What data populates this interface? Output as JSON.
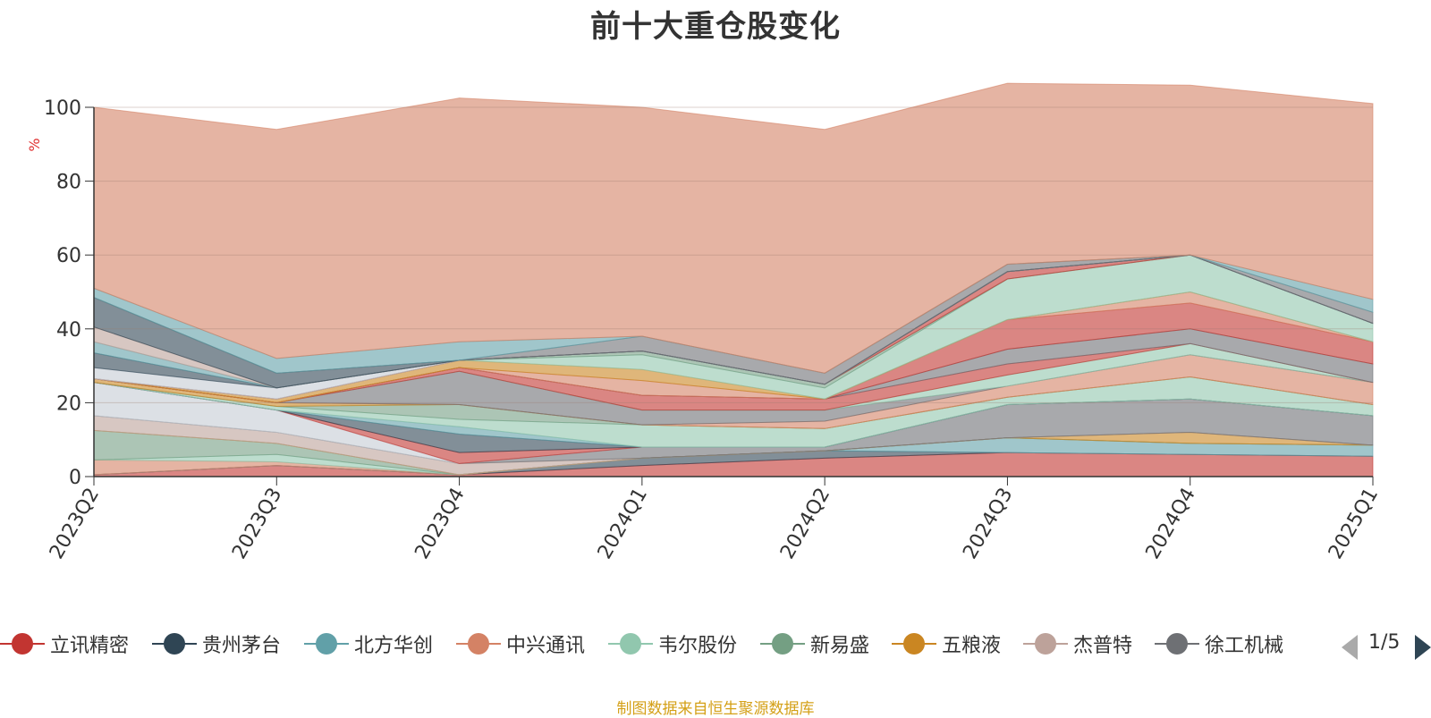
{
  "chart_data": {
    "type": "area",
    "title": "前十大重仓股变化",
    "ylabel": "%",
    "ylim": [
      0,
      100
    ],
    "yticks": [
      0,
      20,
      40,
      60,
      80,
      100
    ],
    "categories": [
      "2023Q2",
      "2023Q3",
      "2023Q4",
      "2024Q1",
      "2024Q2",
      "2024Q3",
      "2024Q4",
      "2025Q1"
    ],
    "grid": true,
    "stacked": true,
    "series": [
      {
        "name": "立讯精密",
        "color": "#c23531",
        "values": [
          0.5,
          3,
          0.5,
          3,
          5,
          6.5,
          6,
          5.5
        ]
      },
      {
        "name": "贵州茅台",
        "color": "#2f4554",
        "values": [
          0,
          0,
          0,
          2,
          2,
          0,
          0,
          0
        ]
      },
      {
        "name": "北方华创",
        "color": "#61a0a8",
        "values": [
          0,
          0,
          0,
          0,
          0,
          4,
          3,
          3
        ]
      },
      {
        "name": "中兴通讯",
        "color": "#d48265",
        "values": [
          4,
          1,
          0,
          0,
          0,
          0,
          0,
          0
        ]
      },
      {
        "name": "韦尔股份",
        "color": "#91c7ae",
        "values": [
          0,
          2,
          0,
          0,
          0,
          0,
          0,
          0
        ]
      },
      {
        "name": "新易盛",
        "color": "#749f83",
        "values": [
          8,
          3,
          0,
          0,
          0,
          0,
          0,
          0
        ]
      },
      {
        "name": "五粮液",
        "color": "#ca8622",
        "values": [
          0,
          0,
          0,
          0,
          0,
          0,
          3,
          0
        ]
      },
      {
        "name": "杰普特",
        "color": "#bda29a",
        "values": [
          4,
          3,
          3,
          0,
          0,
          0,
          0,
          0
        ]
      },
      {
        "name": "徐工机械",
        "color": "#6e7074",
        "values": [
          0,
          0,
          0,
          3,
          1,
          9,
          9,
          8
        ]
      },
      {
        "name": "",
        "color": "#c4ccd3",
        "values": [
          9,
          6,
          0,
          0,
          0,
          0,
          0,
          0
        ]
      },
      {
        "name": "",
        "color": "#c23531",
        "values": [
          0,
          0,
          3,
          0,
          0,
          0,
          0,
          0
        ]
      },
      {
        "name": "",
        "color": "#2f4554",
        "values": [
          0,
          0,
          5,
          0,
          0,
          0,
          0,
          0
        ]
      },
      {
        "name": "",
        "color": "#61a0a8",
        "values": [
          0,
          0,
          2,
          0,
          0,
          0,
          0,
          0
        ]
      },
      {
        "name": "",
        "color": "#91c7ae",
        "values": [
          0,
          1,
          2,
          6,
          5,
          2,
          6,
          3
        ]
      },
      {
        "name": "",
        "color": "#749f83",
        "values": [
          0,
          0,
          4,
          0,
          0,
          0,
          0,
          0
        ]
      },
      {
        "name": "",
        "color": "#ca8622",
        "values": [
          1,
          1,
          0,
          0,
          0,
          0,
          0,
          0
        ]
      },
      {
        "name": "",
        "color": "#d48265",
        "values": [
          0,
          0,
          0,
          0,
          2,
          3,
          6,
          6
        ]
      },
      {
        "name": "",
        "color": "#6e7074",
        "values": [
          0,
          0,
          9,
          4,
          3,
          0,
          0,
          0
        ]
      },
      {
        "name": "",
        "color": "#91c7ae",
        "values": [
          0,
          0,
          0,
          0,
          0,
          3,
          3,
          0
        ]
      },
      {
        "name": "",
        "color": "#c23531",
        "values": [
          0,
          0,
          1,
          4,
          3,
          3,
          0,
          0
        ]
      },
      {
        "name": "",
        "color": "#6e7074",
        "values": [
          0,
          0,
          0,
          0,
          0,
          4,
          4,
          5
        ]
      },
      {
        "name": "",
        "color": "#c23531",
        "values": [
          0,
          0,
          0,
          0,
          0,
          8,
          7,
          6
        ]
      },
      {
        "name": "",
        "color": "#d48265",
        "values": [
          0,
          0,
          0,
          4,
          0,
          0,
          3,
          0
        ]
      },
      {
        "name": "",
        "color": "#ca8622",
        "values": [
          0,
          1,
          2,
          3,
          0,
          0,
          0,
          0
        ]
      },
      {
        "name": "",
        "color": "#91c7ae",
        "values": [
          0,
          0,
          0,
          4,
          3,
          11,
          10,
          5
        ]
      },
      {
        "name": "",
        "color": "#749f83",
        "values": [
          0,
          0,
          0,
          1,
          1,
          0,
          0,
          0
        ]
      },
      {
        "name": "",
        "color": "#c23531",
        "values": [
          0,
          0,
          0,
          0,
          0,
          2,
          0,
          0
        ]
      },
      {
        "name": "",
        "color": "#c4ccd3",
        "values": [
          3,
          3,
          0,
          0,
          0,
          0,
          0,
          0
        ]
      },
      {
        "name": "",
        "color": "#2f4554",
        "values": [
          4,
          0,
          0,
          0,
          0,
          0,
          0,
          0
        ]
      },
      {
        "name": "",
        "color": "#61a0a8",
        "values": [
          3,
          0,
          0,
          0,
          0,
          0,
          0,
          0
        ]
      },
      {
        "name": "",
        "color": "#bda29a",
        "values": [
          4,
          0,
          0,
          0,
          0,
          0,
          0,
          0
        ]
      },
      {
        "name": "",
        "color": "#2f4554",
        "values": [
          8,
          4,
          0,
          0,
          0,
          0,
          0,
          0
        ]
      },
      {
        "name": "",
        "color": "#6e7074",
        "values": [
          0,
          0,
          0,
          4,
          3,
          2,
          0,
          3
        ]
      },
      {
        "name": "",
        "color": "#61a0a8",
        "values": [
          2.5,
          4,
          5,
          0,
          0,
          0,
          0,
          3.5
        ]
      },
      {
        "name": "",
        "color": "#d48265",
        "values": [
          49,
          62,
          66,
          62,
          66,
          49,
          46,
          53
        ]
      }
    ]
  },
  "legend": {
    "items": [
      {
        "label": "立讯精密",
        "color": "#c23531"
      },
      {
        "label": "贵州茅台",
        "color": "#2f4554"
      },
      {
        "label": "北方华创",
        "color": "#61a0a8"
      },
      {
        "label": "中兴通讯",
        "color": "#d48265"
      },
      {
        "label": "韦尔股份",
        "color": "#91c7ae"
      },
      {
        "label": "新易盛",
        "color": "#749f83"
      },
      {
        "label": "五粮液",
        "color": "#ca8622"
      },
      {
        "label": "杰普特",
        "color": "#bda29a"
      },
      {
        "label": "徐工机械",
        "color": "#6e7074"
      }
    ],
    "page_text": "1/5"
  },
  "source_text": "制图数据来自恒生聚源数据库"
}
